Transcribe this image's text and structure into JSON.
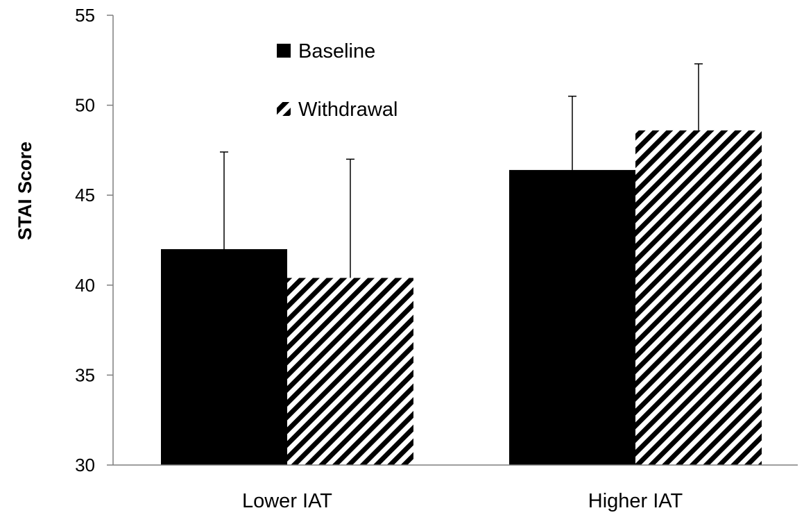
{
  "chart_data": {
    "type": "bar",
    "title": "",
    "xlabel": "",
    "ylabel": "STAI Score",
    "ylim": [
      30,
      55
    ],
    "yticks": [
      "30",
      "35",
      "40",
      "45",
      "50",
      "55"
    ],
    "categories": [
      "Lower IAT",
      "Higher IAT"
    ],
    "series": [
      {
        "name": "Baseline",
        "fill": "solid",
        "color": "#000000",
        "values": [
          42.0,
          46.4
        ],
        "error_upper": [
          5.4,
          4.1
        ]
      },
      {
        "name": "Withdrawal",
        "fill": "diagonal-stripes",
        "color": "#000000",
        "values": [
          40.4,
          48.6
        ],
        "error_upper": [
          6.6,
          3.7
        ]
      }
    ],
    "grid": false,
    "legend_position": "top-center"
  }
}
